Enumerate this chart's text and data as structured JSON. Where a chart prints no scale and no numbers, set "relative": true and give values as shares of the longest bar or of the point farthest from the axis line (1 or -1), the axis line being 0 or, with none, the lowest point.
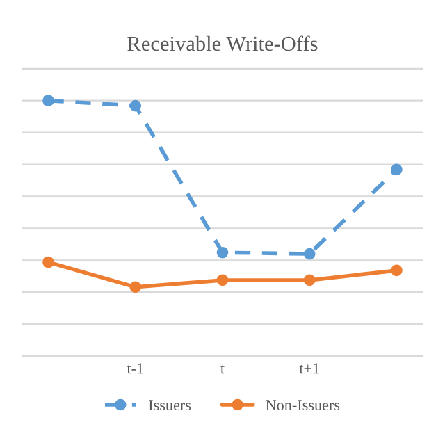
{
  "chart_data": {
    "type": "line",
    "title": "Receivable Write-Offs",
    "relative": true,
    "categories": [
      null,
      "t-1",
      "t",
      "t+1",
      null
    ],
    "series": [
      {
        "name": "Issuers",
        "color": "#5b9bd5",
        "line_style": "dashed",
        "values": [
          1,
          0.98,
          0.405,
          0.4,
          0.73
        ]
      },
      {
        "name": "Non-Issuers",
        "color": "#ed7d31",
        "line_style": "solid",
        "values": [
          0.367,
          0.27,
          0.297,
          0.297,
          0.335
        ]
      }
    ],
    "marker": "circle",
    "grid": "y",
    "legend": "bottom"
  }
}
